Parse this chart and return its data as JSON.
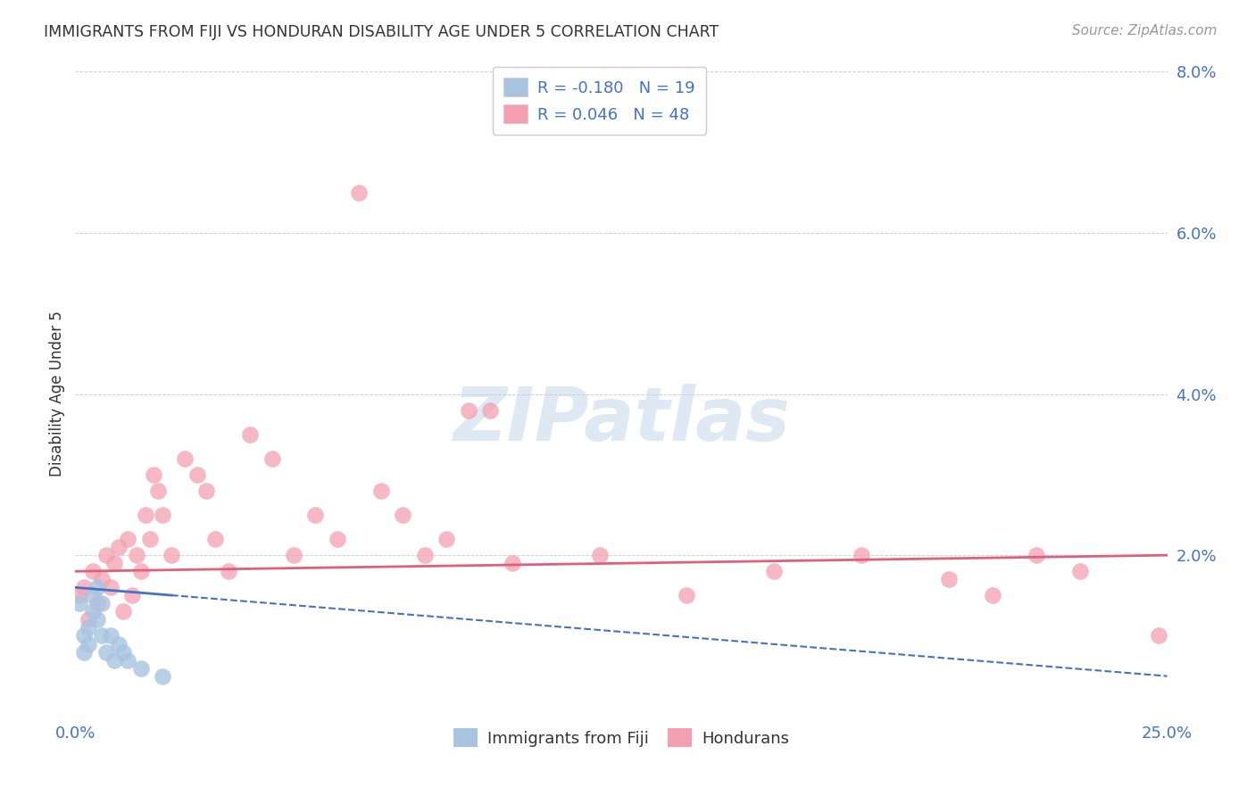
{
  "title": "IMMIGRANTS FROM FIJI VS HONDURAN DISABILITY AGE UNDER 5 CORRELATION CHART",
  "source": "Source: ZipAtlas.com",
  "tick_color": "#4472c4",
  "ylabel": "Disability Age Under 5",
  "xlim": [
    0,
    0.25
  ],
  "ylim": [
    0,
    0.08
  ],
  "legend_R_fiji": "-0.180",
  "legend_N_fiji": "19",
  "legend_R_honduran": "0.046",
  "legend_N_honduran": "48",
  "fiji_color": "#a8c4e0",
  "honduran_color": "#f4a0b0",
  "fiji_line_color": "#4472c4",
  "honduran_line_color": "#e0607a",
  "fiji_points_x": [
    0.001,
    0.002,
    0.002,
    0.003,
    0.003,
    0.004,
    0.004,
    0.005,
    0.005,
    0.006,
    0.006,
    0.007,
    0.008,
    0.009,
    0.01,
    0.011,
    0.012,
    0.015,
    0.02
  ],
  "fiji_points_y": [
    0.014,
    0.008,
    0.01,
    0.009,
    0.011,
    0.013,
    0.015,
    0.012,
    0.016,
    0.01,
    0.014,
    0.008,
    0.01,
    0.007,
    0.009,
    0.008,
    0.007,
    0.006,
    0.005
  ],
  "honduran_points_x": [
    0.001,
    0.002,
    0.003,
    0.004,
    0.005,
    0.006,
    0.007,
    0.008,
    0.009,
    0.01,
    0.011,
    0.012,
    0.013,
    0.014,
    0.015,
    0.016,
    0.017,
    0.018,
    0.019,
    0.02,
    0.022,
    0.025,
    0.028,
    0.03,
    0.032,
    0.035,
    0.04,
    0.045,
    0.05,
    0.055,
    0.06,
    0.065,
    0.07,
    0.075,
    0.08,
    0.085,
    0.09,
    0.095,
    0.1,
    0.12,
    0.14,
    0.16,
    0.18,
    0.2,
    0.21,
    0.22,
    0.23,
    0.248
  ],
  "honduran_points_y": [
    0.015,
    0.016,
    0.012,
    0.018,
    0.014,
    0.017,
    0.02,
    0.016,
    0.019,
    0.021,
    0.013,
    0.022,
    0.015,
    0.02,
    0.018,
    0.025,
    0.022,
    0.03,
    0.028,
    0.025,
    0.02,
    0.032,
    0.03,
    0.028,
    0.022,
    0.018,
    0.035,
    0.032,
    0.02,
    0.025,
    0.022,
    0.065,
    0.028,
    0.025,
    0.02,
    0.022,
    0.038,
    0.038,
    0.019,
    0.02,
    0.015,
    0.018,
    0.02,
    0.017,
    0.015,
    0.02,
    0.018,
    0.01
  ],
  "fiji_line_x_solid_end": 0.022,
  "fiji_line_start_y": 0.016,
  "fiji_line_end_y": 0.005,
  "honduran_line_start_y": 0.018,
  "honduran_line_end_y": 0.02,
  "watermark_text": "ZIPatlas",
  "background_color": "#ffffff",
  "grid_color": "#d0d0d0"
}
